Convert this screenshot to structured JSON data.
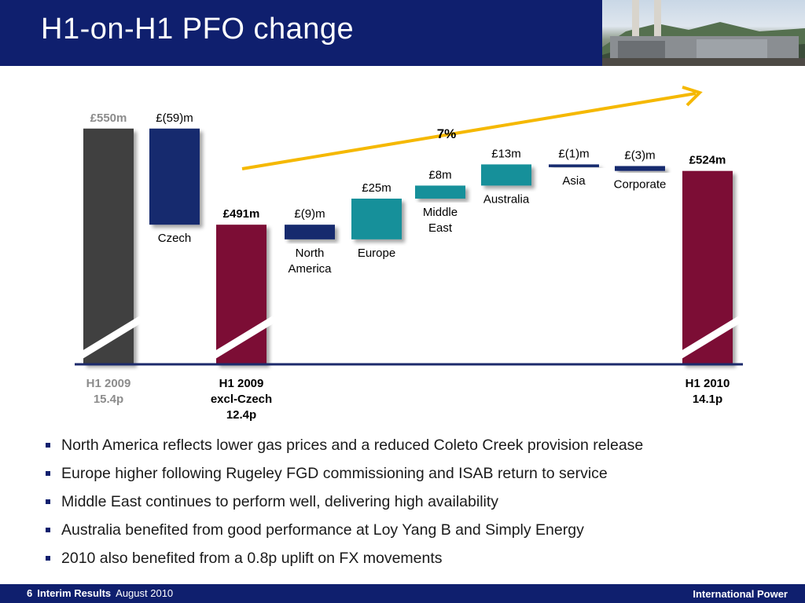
{
  "header": {
    "title": "H1-on-H1 PFO change"
  },
  "chart_data": {
    "type": "bar",
    "subtype": "waterfall",
    "unit": "£m",
    "ylim": [
      0,
      600
    ],
    "bars": [
      {
        "kind": "total",
        "value": 550,
        "label": "£550m",
        "color": "#404040",
        "label_color": "#8c8c8c",
        "xlabel": [
          "H1 2009",
          "15.4p"
        ],
        "xlabel_color": "#8c8c8c",
        "broken": true
      },
      {
        "kind": "delta",
        "start": 550,
        "end": 491,
        "label": "£(59)m",
        "color": "#142a6e",
        "category": [
          "Czech"
        ]
      },
      {
        "kind": "total",
        "value": 491,
        "label": "£491m",
        "color": "#7c0c36",
        "label_color": "#000000",
        "xlabel": [
          "H1 2009",
          "excl-Czech",
          "12.4p"
        ],
        "xlabel_color": "#000000",
        "broken": true
      },
      {
        "kind": "delta",
        "start": 491,
        "end": 482,
        "label": "£(9)m",
        "color": "#142a6e",
        "category": [
          "North",
          "America"
        ]
      },
      {
        "kind": "delta",
        "start": 482,
        "end": 507,
        "label": "£25m",
        "color": "#19909a",
        "category": [
          "Europe"
        ]
      },
      {
        "kind": "delta",
        "start": 507,
        "end": 515,
        "label": "£8m",
        "color": "#19909a",
        "category": [
          "Middle",
          "East"
        ]
      },
      {
        "kind": "delta",
        "start": 515,
        "end": 528,
        "label": "£13m",
        "color": "#19909a",
        "category": [
          "Australia"
        ]
      },
      {
        "kind": "delta",
        "start": 528,
        "end": 527,
        "label": "£(1)m",
        "color": "#142a6e",
        "category": [
          "Asia"
        ]
      },
      {
        "kind": "delta",
        "start": 527,
        "end": 524,
        "label": "£(3)m",
        "color": "#142a6e",
        "category": [
          "Corporate"
        ]
      },
      {
        "kind": "total",
        "value": 524,
        "label": "£524m",
        "color": "#7c0c36",
        "label_color": "#000000",
        "xlabel": [
          "H1 2010",
          "14.1p"
        ],
        "xlabel_color": "#000000",
        "broken": true
      }
    ],
    "annotation": {
      "text": "7%",
      "arrow_color": "#f5b800"
    }
  },
  "bullets": [
    "North America reflects lower gas prices and a reduced Coleto Creek provision release",
    "Europe higher following Rugeley FGD commissioning and ISAB return to service",
    "Middle East continues to perform well, delivering high availability",
    "Australia benefited from good performance at Loy Yang B and Simply Energy",
    "2010 also benefited from a 0.8p uplift on FX movements"
  ],
  "footer": {
    "page_number": "6",
    "section": "Interim Results",
    "date": "August 2010",
    "brand": "International Power"
  },
  "colors": {
    "brand_navy": "#0f1f6e",
    "axis": "#1c2a6b"
  }
}
